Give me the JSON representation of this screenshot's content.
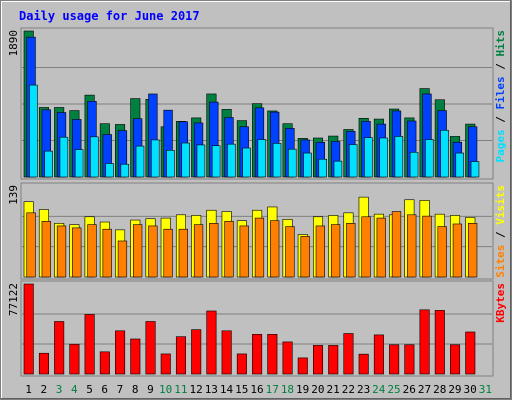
{
  "chart_data": {
    "type": "bar",
    "title": "Daily usage for June 2017",
    "days": [
      "1",
      "2",
      "3",
      "4",
      "5",
      "6",
      "7",
      "8",
      "9",
      "10",
      "11",
      "12",
      "13",
      "14",
      "15",
      "16",
      "17",
      "18",
      "19",
      "20",
      "21",
      "22",
      "23",
      "24",
      "25",
      "26",
      "27",
      "28",
      "29",
      "30",
      "31"
    ],
    "weekend_days": [
      "3",
      "4",
      "10",
      "11",
      "17",
      "18",
      "24",
      "25",
      "31"
    ],
    "panels": [
      {
        "id": "hits",
        "ylabel_top": "1890",
        "ylim": [
          0,
          1890
        ],
        "series": [
          {
            "name": "Hits",
            "color": "#008040",
            "values": [
              1890,
              900,
              900,
              860,
              1060,
              690,
              680,
              1015,
              1005,
              650,
              720,
              765,
              1075,
              875,
              730,
              950,
              855,
              690,
              500,
              505,
              530,
              615,
              760,
              750,
              880,
              765,
              1145,
              1000,
              525,
              685,
              0
            ]
          },
          {
            "name": "Files",
            "color": "#0040ff",
            "values": [
              1810,
              870,
              835,
              745,
              980,
              550,
              600,
              755,
              1075,
              865,
              715,
              700,
              970,
              770,
              650,
              895,
              840,
              630,
              480,
              450,
              460,
              590,
              720,
              685,
              855,
              725,
              1075,
              860,
              450,
              650,
              0
            ]
          },
          {
            "name": "Pages",
            "color": "#00e0ff",
            "values": [
              1190,
              335,
              515,
              355,
              520,
              175,
              165,
              400,
              480,
              345,
              440,
              415,
              405,
              425,
              375,
              485,
              435,
              360,
              310,
              230,
              205,
              420,
              510,
              505,
              525,
              320,
              485,
              605,
              310,
              200,
              0
            ]
          }
        ]
      },
      {
        "id": "visits",
        "ylabel_top": "139",
        "ylim": [
          0,
          139
        ],
        "series": [
          {
            "name": "Visits",
            "color": "#ffff00",
            "values": [
              115,
              103,
              82,
              80,
              92,
              84,
              72,
              87,
              89,
              90,
              95,
              94,
              102,
              100,
              86,
              102,
              107,
              88,
              65,
              92,
              94,
              98,
              122,
              96,
              95,
              118,
              117,
              96,
              94,
              91,
              0
            ]
          },
          {
            "name": "Sites",
            "color": "#ff8000",
            "values": [
              98,
              85,
              78,
              75,
              80,
              73,
              55,
              80,
              78,
              73,
              73,
              80,
              82,
              85,
              78,
              90,
              86,
              77,
              62,
              78,
              80,
              82,
              92,
              90,
              100,
              95,
              93,
              77,
              81,
              82,
              0
            ]
          }
        ]
      },
      {
        "id": "kbytes",
        "ylabel_top": "77122",
        "ylim": [
          0,
          77122
        ],
        "series": [
          {
            "name": "KBytes",
            "color": "#ff0000",
            "values": [
              77122,
              17800,
              45000,
              25500,
              51000,
              19000,
              37000,
              30000,
              45000,
              17200,
              32000,
              38000,
              54000,
              37000,
              17200,
              34000,
              34000,
              27500,
              13800,
              24500,
              24500,
              34700,
              17000,
              33500,
              25000,
              25000,
              55000,
              54500,
              25000,
              36000,
              0
            ]
          }
        ]
      }
    ],
    "legend_right": [
      [
        "Pages",
        "/",
        "Files",
        "/",
        "Hits"
      ],
      [
        "Sites",
        "/",
        "Visits"
      ],
      [
        "KBytes"
      ]
    ]
  },
  "colors": {
    "background": "#c0c0c0",
    "title": "#0000ff",
    "weekday_label": "#000000",
    "weekend_label": "#008040",
    "separator": "#000000"
  }
}
